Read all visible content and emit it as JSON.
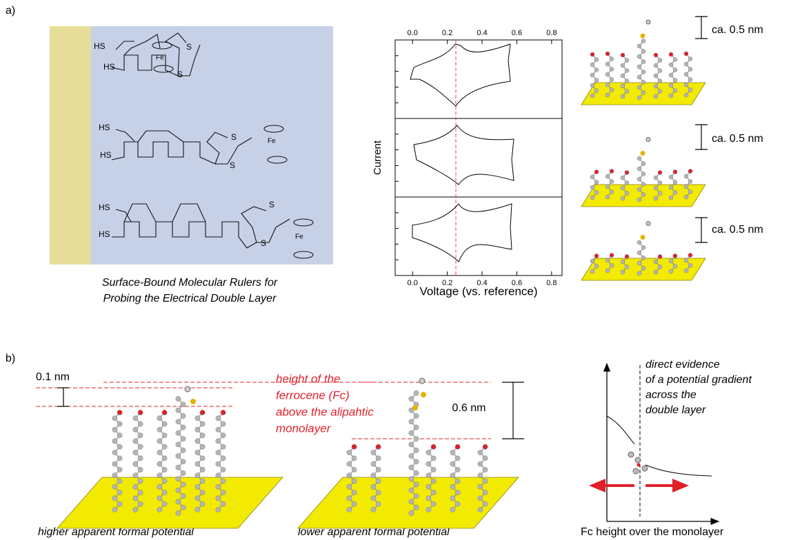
{
  "panel_a": {
    "label": "a)",
    "molecules": [
      {
        "labels": [
          "HS",
          "HS",
          "S",
          "S",
          "Fe"
        ]
      },
      {
        "labels": [
          "HS",
          "HS",
          "S",
          "S",
          "Fe"
        ]
      },
      {
        "labels": [
          "HS",
          "HS",
          "S",
          "S",
          "Fe"
        ]
      }
    ],
    "caption": [
      "Surface-Bound Molecular Rulers for",
      "Probing the Electrical Double Layer"
    ],
    "cv_plot": {
      "xlabel": "Voltage (vs. reference)",
      "ylabel": "Current",
      "xlim": [
        -0.1,
        0.86
      ],
      "xticks": [
        {
          "value": 0,
          "label": "0.0"
        },
        0.2,
        0.4,
        0.6,
        0.8
      ]
    },
    "scale_labels": [
      "ca. 0.5 nm",
      "ca. 0.5 nm",
      "ca. 0.5 nm"
    ]
  },
  "panel_b": {
    "label": "b)",
    "scale_left": "0.1 nm",
    "annotation": [
      "height of the",
      "ferrocene (Fc)",
      "above the alipahtic",
      "monolayer"
    ],
    "scale_right": "0.6 nm",
    "captions": [
      "higher apparent formal potential",
      "lower apparent formal potential"
    ],
    "graph_note": [
      "direct evidence",
      "of a potential gradient",
      "across the",
      "double layer"
    ],
    "graph_xlabel": "Fc height over the monolayer"
  }
}
